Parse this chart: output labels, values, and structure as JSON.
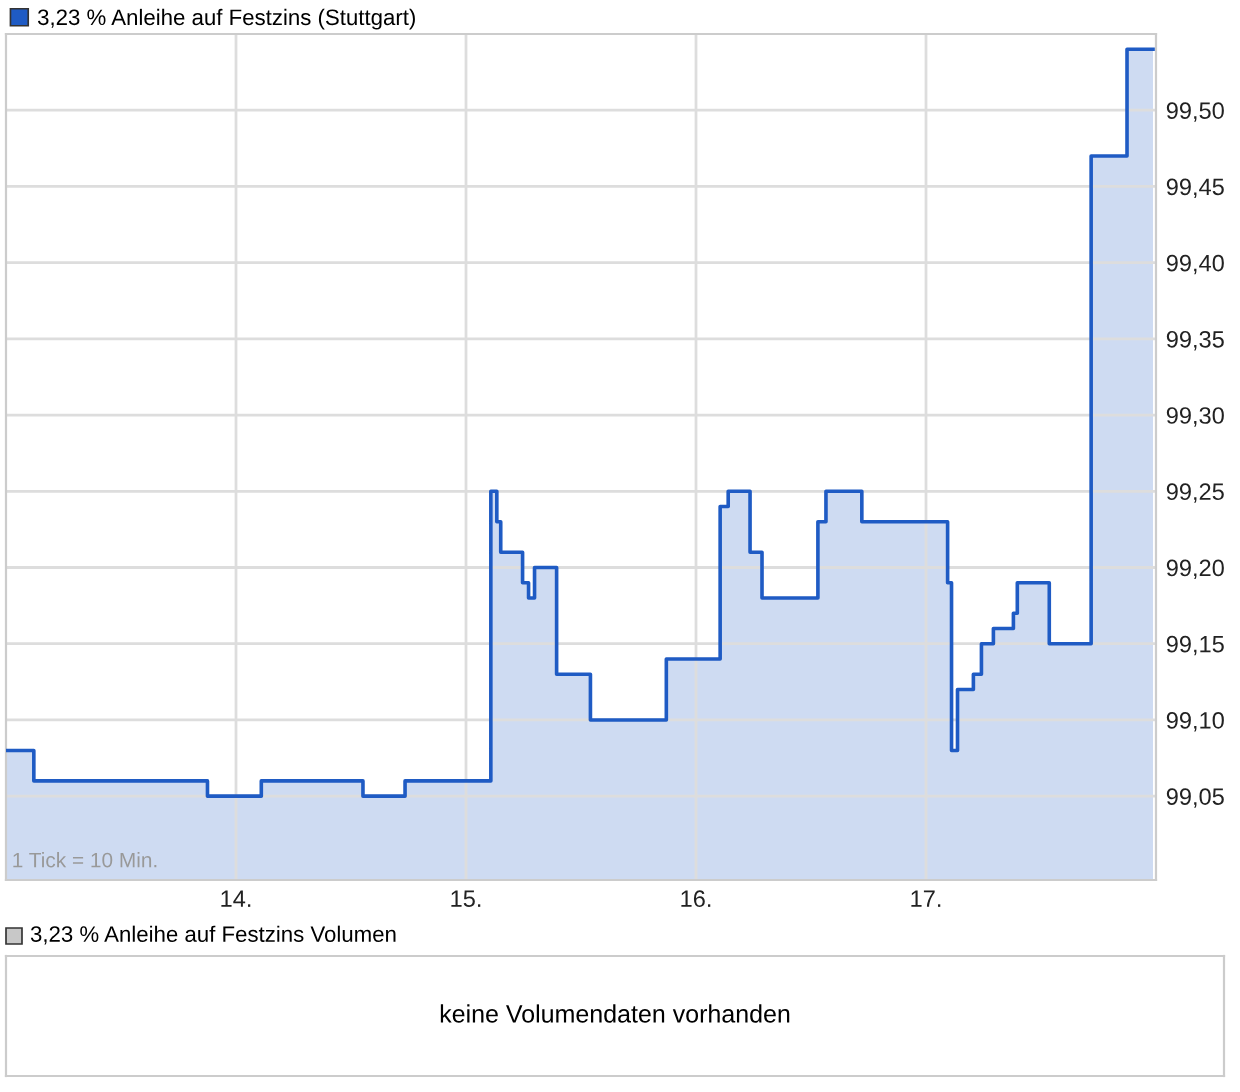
{
  "chart_data": [
    {
      "type": "area",
      "series": [
        {
          "name": "3,23 % Anleihe auf Festzins (Stuttgart)",
          "color": "#1f5bc4",
          "x": [
            13.0,
            13.121,
            13.121,
            13.876,
            13.876,
            14.11,
            14.11,
            14.552,
            14.552,
            14.735,
            14.735,
            15.108,
            15.108,
            15.134,
            15.134,
            15.151,
            15.151,
            15.246,
            15.246,
            15.272,
            15.272,
            15.298,
            15.298,
            15.394,
            15.394,
            15.541,
            15.541,
            15.871,
            15.871,
            16.105,
            16.105,
            16.14,
            16.14,
            16.235,
            16.235,
            16.287,
            16.287,
            16.53,
            16.53,
            16.565,
            16.565,
            16.721,
            16.721,
            17.094,
            17.094,
            17.111,
            17.111,
            17.137,
            17.137,
            17.206,
            17.206,
            17.241,
            17.241,
            17.293,
            17.293,
            17.38,
            17.38,
            17.397,
            17.397,
            17.536,
            17.536,
            17.718,
            17.718,
            17.874,
            17.874,
            17.987
          ],
          "values": [
            99.08,
            99.08,
            99.06,
            99.06,
            99.05,
            99.05,
            99.06,
            99.06,
            99.05,
            99.05,
            99.06,
            99.06,
            99.25,
            99.25,
            99.23,
            99.23,
            99.21,
            99.21,
            99.19,
            99.19,
            99.18,
            99.18,
            99.2,
            99.2,
            99.13,
            99.13,
            99.1,
            99.1,
            99.14,
            99.14,
            99.24,
            99.24,
            99.25,
            99.25,
            99.21,
            99.21,
            99.18,
            99.18,
            99.23,
            99.23,
            99.25,
            99.25,
            99.23,
            99.23,
            99.19,
            99.19,
            99.08,
            99.08,
            99.12,
            99.12,
            99.13,
            99.13,
            99.15,
            99.15,
            99.16,
            99.16,
            99.17,
            99.17,
            99.19,
            99.19,
            99.15,
            99.15,
            99.47,
            99.47,
            99.54,
            99.54
          ]
        }
      ],
      "xlim": [
        13.0,
        18.0
      ],
      "xticks": [
        {
          "value": 14,
          "label": "14."
        },
        {
          "value": 15,
          "label": "15."
        },
        {
          "value": 16,
          "label": "16."
        },
        {
          "value": 17,
          "label": "17."
        }
      ],
      "ylim": [
        98.995,
        99.55
      ],
      "yticks": [
        {
          "value": 99.05,
          "label": "99,05"
        },
        {
          "value": 99.1,
          "label": "99,10"
        },
        {
          "value": 99.15,
          "label": "99,15"
        },
        {
          "value": 99.2,
          "label": "99,20"
        },
        {
          "value": 99.25,
          "label": "99,25"
        },
        {
          "value": 99.3,
          "label": "99,30"
        },
        {
          "value": 99.35,
          "label": "99,35"
        },
        {
          "value": 99.4,
          "label": "99,40"
        },
        {
          "value": 99.45,
          "label": "99,45"
        },
        {
          "value": 99.5,
          "label": "99,50"
        }
      ],
      "grid": true,
      "legend": "top left",
      "annotations": [
        "1 Tick = 10 Min."
      ]
    },
    {
      "type": "other",
      "title": "3,23 % Anleihe auf Festzins Volumen",
      "color": "#c8c8c8",
      "annotations": [
        "keine Volumendaten vorhanden"
      ]
    }
  ]
}
